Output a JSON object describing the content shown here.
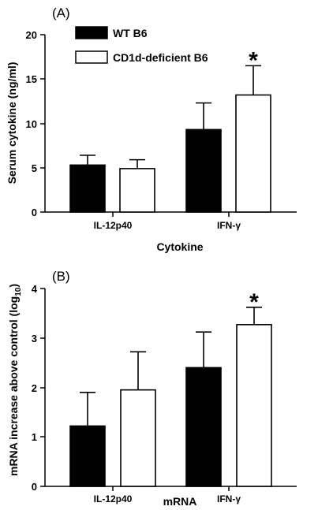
{
  "chart_data": [
    {
      "type": "bar",
      "panel_label": "(A)",
      "title": "",
      "xlabel": "Cytokine",
      "ylabel": "Serum  cytokine  (ng/ml)",
      "ylim": [
        0,
        20
      ],
      "yticks": [
        "0",
        "5",
        "10",
        "15",
        "20"
      ],
      "categories": [
        "IL-12p40",
        "IFN-γ"
      ],
      "series": [
        {
          "name": "WT B6",
          "fill": "#000000",
          "values": [
            5.3,
            9.3
          ],
          "errors": [
            1.1,
            3.0
          ]
        },
        {
          "name": "CD1d-deficient B6",
          "fill": "#ffffff",
          "values": [
            4.9,
            13.2
          ],
          "errors": [
            1.0,
            3.3
          ]
        }
      ],
      "annotations": [
        {
          "text": "*",
          "category": "IFN-γ",
          "series": "CD1d-deficient B6"
        }
      ],
      "legend": "top-left",
      "grid": false
    },
    {
      "type": "bar",
      "panel_label": "(B)",
      "title": "",
      "xlabel": "mRNA",
      "ylabel_main": "mRNA  increase  above  control  (log",
      "ylabel_sub": "10",
      "ylabel_end": ")",
      "ylim": [
        0,
        4
      ],
      "yticks": [
        "0",
        "1",
        "2",
        "3",
        "4"
      ],
      "categories": [
        "IL-12p40",
        "IFN-γ"
      ],
      "series": [
        {
          "fill": "#000000",
          "values": [
            1.22,
            2.4
          ],
          "errors": [
            0.68,
            0.72
          ]
        },
        {
          "fill": "#ffffff",
          "values": [
            1.95,
            3.27
          ],
          "errors": [
            0.77,
            0.35
          ]
        }
      ],
      "annotations": [
        {
          "text": "*",
          "category": "IFN-γ",
          "series": 1
        }
      ],
      "legend": "none",
      "grid": false
    }
  ]
}
